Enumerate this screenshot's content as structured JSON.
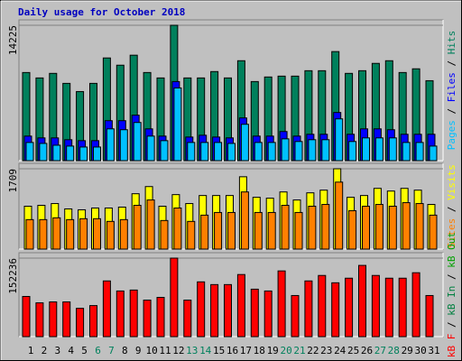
{
  "chart_data": [
    {
      "type": "bar",
      "title": "Daily usage for October 2018",
      "ylim": [
        0,
        14225
      ],
      "yticks": [
        14225
      ],
      "legend_separator": " / ",
      "series": [
        {
          "name": "Hits",
          "color": "#00805c",
          "values": [
            9260,
            8690,
            9170,
            8120,
            7260,
            8120,
            10790,
            10030,
            11080,
            9260,
            8690,
            14225,
            8690,
            8690,
            9360,
            8690,
            10500,
            8310,
            8790,
            8880,
            8880,
            9450,
            9450,
            11460,
            9170,
            9450,
            10220,
            10500,
            9260,
            9650,
            8400
          ]
        },
        {
          "name": "Files",
          "color": "#0000ff",
          "values": [
            2580,
            2390,
            2390,
            2200,
            2100,
            2100,
            4200,
            4200,
            4780,
            3340,
            2580,
            8310,
            2480,
            2670,
            2480,
            2390,
            4490,
            2580,
            2580,
            3060,
            2580,
            2770,
            2770,
            5060,
            2770,
            3340,
            3340,
            3250,
            2770,
            2770,
            2770
          ]
        },
        {
          "name": "Pages",
          "color": "#00c0ff",
          "values": [
            1910,
            1810,
            1620,
            1530,
            1430,
            1430,
            3340,
            3250,
            4010,
            2580,
            2100,
            7640,
            1910,
            1910,
            1910,
            1810,
            3820,
            1910,
            1910,
            2290,
            2010,
            2200,
            2200,
            4390,
            2010,
            2390,
            2390,
            2390,
            1910,
            1910,
            1530
          ]
        }
      ]
    },
    {
      "type": "bar",
      "ylim": [
        0,
        1709
      ],
      "yticks": [
        1709
      ],
      "legend_separator": " / ",
      "series": [
        {
          "name": "Visits",
          "color": "#ffff00",
          "values": [
            912,
            931,
            969,
            855,
            836,
            874,
            874,
            893,
            1178,
            1330,
            912,
            1159,
            969,
            1140,
            1140,
            1140,
            1539,
            1102,
            1083,
            1216,
            1045,
            1197,
            1254,
            1709,
            1102,
            1140,
            1292,
            1235,
            1292,
            1254,
            950
          ]
        },
        {
          "name": "Sites",
          "color": "#ff8000",
          "values": [
            627,
            627,
            665,
            627,
            646,
            646,
            589,
            627,
            931,
            1045,
            608,
            874,
            589,
            722,
            779,
            779,
            1216,
            779,
            779,
            931,
            779,
            912,
            950,
            1425,
            817,
            912,
            950,
            912,
            988,
            969,
            722
          ]
        }
      ]
    },
    {
      "type": "bar",
      "ylim": [
        0,
        152236
      ],
      "yticks": [
        152236
      ],
      "legend_separator": " / ",
      "categories": [
        "1",
        "2",
        "3",
        "4",
        "5",
        "6",
        "7",
        "8",
        "9",
        "10",
        "11",
        "12",
        "13",
        "14",
        "15",
        "16",
        "17",
        "18",
        "19",
        "20",
        "21",
        "22",
        "23",
        "24",
        "25",
        "26",
        "27",
        "28",
        "29",
        "30",
        "31"
      ],
      "category_colors": [
        "#000000",
        "#000000",
        "#000000",
        "#000000",
        "#000000",
        "#00805c",
        "#00805c",
        "#000000",
        "#000000",
        "#000000",
        "#000000",
        "#000000",
        "#00805c",
        "#00805c",
        "#000000",
        "#000000",
        "#000000",
        "#000000",
        "#000000",
        "#00805c",
        "#00805c",
        "#000000",
        "#000000",
        "#000000",
        "#000000",
        "#000000",
        "#00805c",
        "#00805c",
        "#000000",
        "#000000",
        "#000000"
      ],
      "series": [
        {
          "name": "kB F",
          "color": "#ff0000",
          "values": [
            77900,
            65500,
            67300,
            67300,
            54900,
            60200,
            108000,
            88500,
            90300,
            70800,
            76100,
            152236,
            70800,
            106200,
            100900,
            100900,
            120400,
            92000,
            88500,
            127400,
            79700,
            108000,
            118600,
            104400,
            113300,
            138100,
            118600,
            113300,
            113300,
            123900,
            79700
          ]
        },
        {
          "name": "kB In",
          "color": "#008040"
        },
        {
          "name": "kB Out",
          "color": "#00a000"
        }
      ]
    }
  ]
}
